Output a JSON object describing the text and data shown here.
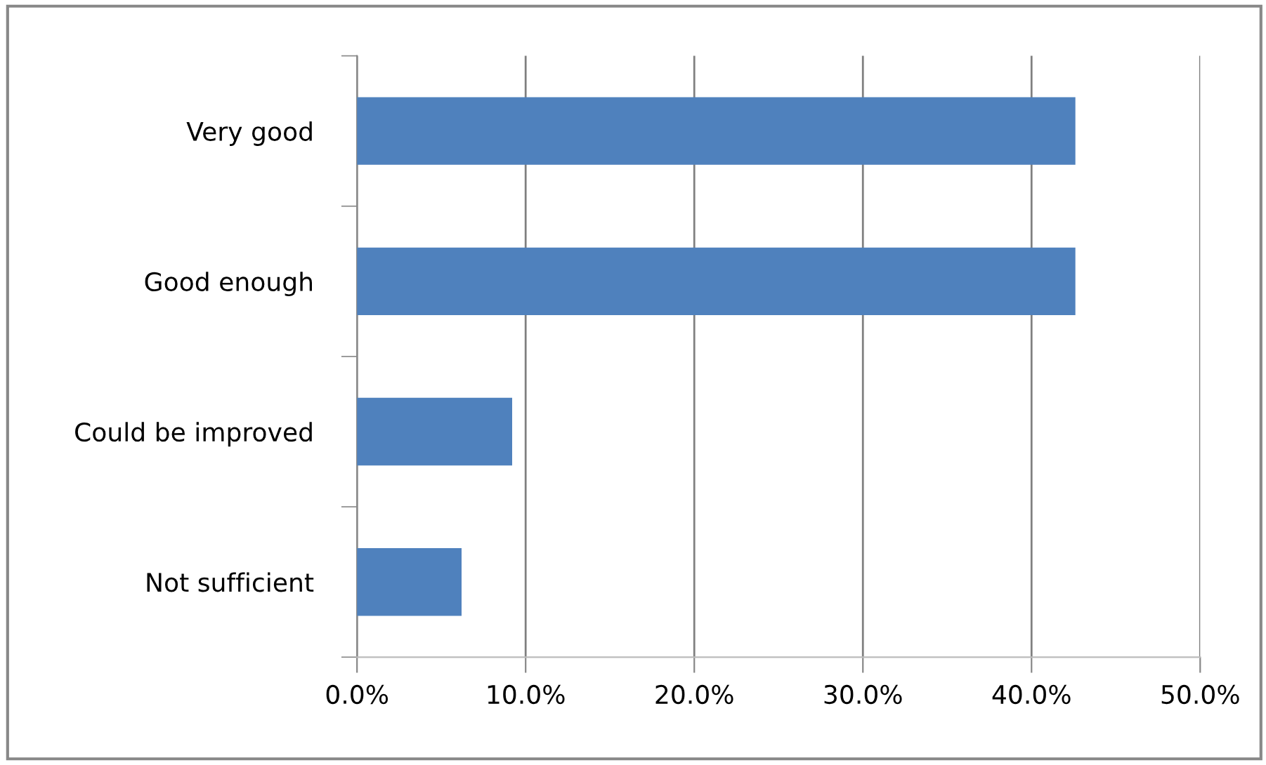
{
  "chart_data": {
    "type": "bar",
    "orientation": "horizontal",
    "categories": [
      "Very good",
      "Good enough",
      "Could be improved",
      "Not sufficient"
    ],
    "values": [
      42.6,
      42.6,
      9.2,
      6.2
    ],
    "color": "#4f81bd",
    "xlim": [
      0,
      50
    ],
    "xticks": [
      {
        "value": 0,
        "label": "0.0%"
      },
      {
        "value": 10,
        "label": "10.0%"
      },
      {
        "value": 20,
        "label": "20.0%"
      },
      {
        "value": 30,
        "label": "30.0%"
      },
      {
        "value": 40,
        "label": "40.0%"
      },
      {
        "value": 50,
        "label": "50.0%"
      }
    ],
    "grid": "x",
    "legend": false
  }
}
